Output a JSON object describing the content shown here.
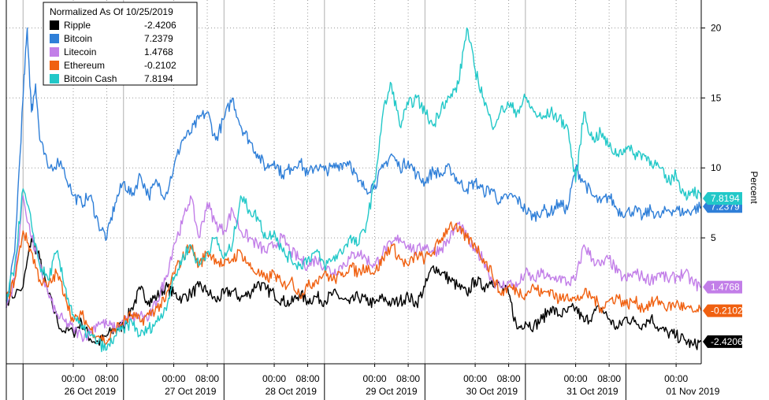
{
  "chart_data": {
    "type": "line",
    "legend": {
      "title": "Normalized As Of 10/25/2019",
      "placement": "top-left"
    },
    "ylabel": "Percent",
    "ylim": [
      -4.0,
      22.0
    ],
    "y_ticks": [
      20,
      15,
      10,
      5
    ],
    "x_range_hours": [
      -16,
      150
    ],
    "x_time_labels": [
      {
        "hour": 0,
        "label": "00:00"
      },
      {
        "hour": 8,
        "label": "08:00"
      },
      {
        "hour": 24,
        "label": "00:00"
      },
      {
        "hour": 32,
        "label": "08:00"
      },
      {
        "hour": 48,
        "label": "00:00"
      },
      {
        "hour": 56,
        "label": "08:00"
      },
      {
        "hour": 72,
        "label": "00:00"
      },
      {
        "hour": 80,
        "label": "08:00"
      },
      {
        "hour": 96,
        "label": "00:00"
      },
      {
        "hour": 104,
        "label": "08:00"
      },
      {
        "hour": 120,
        "label": "00:00"
      },
      {
        "hour": 128,
        "label": "08:00"
      },
      {
        "hour": 144,
        "label": "00:00"
      },
      {
        "hour": 152,
        "label": "08:00"
      }
    ],
    "x_date_labels": [
      {
        "hour": 0,
        "label": "26 Oct 2019"
      },
      {
        "hour": 24,
        "label": "27 Oct 2019"
      },
      {
        "hour": 48,
        "label": "28 Oct 2019"
      },
      {
        "hour": 72,
        "label": "29 Oct 2019"
      },
      {
        "hour": 96,
        "label": "30 Oct 2019"
      },
      {
        "hour": 120,
        "label": "31 Oct 2019"
      },
      {
        "hour": 144,
        "label": "01 Nov 2019"
      }
    ],
    "grid": true,
    "series": [
      {
        "name": "Ripple",
        "last_value": "-2.4206",
        "last_label": "-2.4206",
        "color": "#000000",
        "x": [
          -16,
          -12,
          -10,
          -8,
          -6,
          -3,
          0,
          2,
          4,
          6,
          8,
          10,
          12,
          14,
          16,
          18,
          20,
          22,
          24,
          26,
          28,
          30,
          32,
          34,
          36,
          38,
          40,
          42,
          44,
          46,
          48,
          50,
          52,
          54,
          56,
          58,
          60,
          62,
          64,
          66,
          68,
          70,
          72,
          74,
          76,
          78,
          80,
          82,
          84,
          86,
          88,
          90,
          92,
          94,
          96,
          98,
          100,
          102,
          104,
          106,
          108,
          110,
          112,
          114,
          116,
          118,
          120,
          122,
          124,
          126,
          128,
          130,
          132,
          134,
          136,
          138,
          140,
          142,
          144,
          146,
          148,
          150
        ],
        "y": [
          0.5,
          1.5,
          5.0,
          3.5,
          1.0,
          -1.5,
          -1.8,
          -1.0,
          -2.2,
          -2.5,
          -2.0,
          -1.5,
          -1.3,
          0.0,
          1.3,
          0.5,
          0.8,
          1.5,
          1.0,
          0.7,
          1.0,
          1.5,
          1.2,
          0.5,
          1.0,
          1.2,
          0.7,
          1.0,
          1.8,
          1.3,
          1.0,
          0.5,
          0.3,
          1.0,
          0.5,
          0.8,
          0.5,
          1.0,
          0.7,
          0.3,
          0.8,
          0.5,
          0.3,
          0.7,
          0.3,
          0.5,
          0.8,
          0.3,
          1.5,
          3.0,
          2.5,
          2.0,
          1.5,
          1.0,
          2.0,
          1.5,
          2.0,
          1.5,
          1.0,
          -1.5,
          -1.0,
          -1.3,
          -0.8,
          0.0,
          -0.5,
          -0.3,
          0.0,
          -1.0,
          -0.5,
          0.0,
          -0.8,
          -1.5,
          -0.7,
          -1.0,
          -1.2,
          -0.7,
          -1.5,
          -1.8,
          -2.0,
          -2.3,
          -2.7,
          -2.42
        ]
      },
      {
        "name": "Bitcoin",
        "last_value": "7.2379",
        "last_label": "7.2379",
        "color": "#2f7fd8",
        "x": [
          -16,
          -14,
          -12,
          -11,
          -10,
          -9,
          -8,
          -6,
          -3,
          0,
          2,
          4,
          6,
          8,
          10,
          12,
          14,
          16,
          18,
          20,
          22,
          24,
          26,
          28,
          30,
          32,
          34,
          36,
          38,
          40,
          42,
          44,
          46,
          48,
          50,
          52,
          54,
          56,
          58,
          60,
          62,
          64,
          66,
          68,
          70,
          72,
          74,
          76,
          78,
          80,
          82,
          84,
          86,
          88,
          90,
          92,
          94,
          96,
          98,
          100,
          102,
          104,
          106,
          108,
          110,
          112,
          114,
          116,
          118,
          120,
          122,
          124,
          126,
          128,
          130,
          132,
          134,
          136,
          138,
          140,
          142,
          144,
          146,
          148,
          150
        ],
        "y": [
          0.0,
          4.0,
          15.0,
          20.0,
          14.0,
          16.0,
          12.0,
          10.0,
          10.5,
          8.0,
          7.5,
          8.0,
          6.0,
          5.0,
          7.5,
          9.0,
          8.0,
          9.5,
          8.0,
          9.0,
          8.0,
          10.0,
          12.0,
          12.5,
          13.5,
          14.0,
          12.0,
          13.5,
          15.0,
          13.0,
          12.0,
          11.0,
          10.0,
          10.5,
          9.5,
          10.0,
          10.5,
          9.5,
          10.2,
          9.8,
          10.0,
          10.3,
          10.5,
          9.0,
          8.5,
          8.8,
          10.0,
          11.0,
          10.0,
          10.5,
          9.5,
          9.0,
          9.8,
          9.5,
          10.0,
          9.0,
          8.5,
          9.0,
          8.3,
          8.5,
          7.5,
          8.0,
          7.8,
          7.0,
          6.5,
          7.0,
          6.8,
          7.5,
          7.0,
          10.0,
          9.0,
          8.0,
          7.5,
          8.0,
          7.0,
          6.8,
          7.0,
          6.5,
          7.0,
          6.5,
          7.0,
          7.0,
          6.8,
          7.0,
          7.24
        ]
      },
      {
        "name": "Litecoin",
        "last_value": "1.4768",
        "last_label": "1.4768",
        "color": "#c27ee8",
        "x": [
          -16,
          -14,
          -12,
          -10,
          -8,
          -6,
          -4,
          -2,
          0,
          2,
          4,
          6,
          8,
          10,
          12,
          14,
          16,
          18,
          20,
          22,
          24,
          26,
          28,
          30,
          32,
          34,
          36,
          38,
          40,
          42,
          44,
          46,
          48,
          50,
          52,
          54,
          56,
          58,
          60,
          62,
          64,
          66,
          68,
          70,
          72,
          74,
          76,
          78,
          80,
          82,
          84,
          86,
          88,
          90,
          92,
          94,
          96,
          98,
          100,
          102,
          104,
          106,
          108,
          110,
          112,
          114,
          116,
          118,
          120,
          122,
          124,
          126,
          128,
          130,
          132,
          134,
          136,
          138,
          140,
          142,
          144,
          146,
          148,
          150
        ],
        "y": [
          0.0,
          2.0,
          8.0,
          5.0,
          3.0,
          1.0,
          -0.5,
          -1.0,
          -1.5,
          -2.0,
          -1.8,
          -1.0,
          -1.2,
          -1.5,
          -1.0,
          -0.8,
          -0.5,
          -0.8,
          0.5,
          2.0,
          4.5,
          6.0,
          8.0,
          5.0,
          7.5,
          6.0,
          5.5,
          7.0,
          5.5,
          5.0,
          4.5,
          4.0,
          4.5,
          5.0,
          4.0,
          3.5,
          3.0,
          3.5,
          3.0,
          2.5,
          3.0,
          3.5,
          4.0,
          3.5,
          3.0,
          4.0,
          4.5,
          5.0,
          4.5,
          4.0,
          4.5,
          4.0,
          4.3,
          5.0,
          6.0,
          5.0,
          4.0,
          3.5,
          2.0,
          1.5,
          1.8,
          1.5,
          2.5,
          2.0,
          2.5,
          2.0,
          2.2,
          1.8,
          2.0,
          4.5,
          3.5,
          3.0,
          3.5,
          2.5,
          2.0,
          2.5,
          2.2,
          2.0,
          2.5,
          2.0,
          2.2,
          2.5,
          1.8,
          1.48
        ]
      },
      {
        "name": "Ethereum",
        "last_value": "-0.2102",
        "last_label": "-0.2102",
        "color": "#f06010",
        "x": [
          -16,
          -14,
          -12,
          -10,
          -8,
          -6,
          -4,
          -2,
          0,
          2,
          4,
          6,
          8,
          10,
          12,
          14,
          16,
          18,
          20,
          22,
          24,
          26,
          28,
          30,
          32,
          34,
          36,
          38,
          40,
          42,
          44,
          46,
          48,
          50,
          52,
          54,
          56,
          58,
          60,
          62,
          64,
          66,
          68,
          70,
          72,
          74,
          76,
          78,
          80,
          82,
          84,
          86,
          88,
          90,
          92,
          94,
          96,
          98,
          100,
          102,
          104,
          106,
          108,
          110,
          112,
          114,
          116,
          118,
          120,
          122,
          124,
          126,
          128,
          130,
          132,
          134,
          136,
          138,
          140,
          142,
          144,
          146,
          148,
          150
        ],
        "y": [
          0.5,
          2.0,
          5.5,
          4.0,
          2.0,
          1.5,
          2.5,
          1.0,
          -1.0,
          -0.5,
          -1.5,
          -2.0,
          -2.5,
          -1.5,
          -1.0,
          -0.5,
          -1.0,
          -0.5,
          0.0,
          0.5,
          2.5,
          3.5,
          4.5,
          3.0,
          4.0,
          3.5,
          3.0,
          3.5,
          4.0,
          3.0,
          2.5,
          2.0,
          2.5,
          1.5,
          2.0,
          1.0,
          1.5,
          2.0,
          2.5,
          2.0,
          2.3,
          3.0,
          2.5,
          3.0,
          2.5,
          3.5,
          4.5,
          3.5,
          3.0,
          3.8,
          3.5,
          4.0,
          5.0,
          6.0,
          5.5,
          5.0,
          4.5,
          3.5,
          2.5,
          1.0,
          1.5,
          1.2,
          1.0,
          1.5,
          1.0,
          1.3,
          0.5,
          1.0,
          0.5,
          1.0,
          0.8,
          0.0,
          0.5,
          0.8,
          0.2,
          0.5,
          0.0,
          0.3,
          0.5,
          0.0,
          0.3,
          0.0,
          -0.3,
          -0.21
        ]
      },
      {
        "name": "Bitcoin Cash",
        "last_value": "7.8194",
        "last_label": "7.8194",
        "color": "#22c8c8",
        "x": [
          -16,
          -14,
          -12,
          -10,
          -8,
          -6,
          -4,
          -2,
          0,
          2,
          4,
          6,
          8,
          10,
          12,
          14,
          16,
          18,
          20,
          22,
          24,
          26,
          28,
          30,
          32,
          34,
          36,
          38,
          40,
          42,
          44,
          46,
          48,
          50,
          52,
          54,
          56,
          58,
          60,
          62,
          64,
          66,
          68,
          70,
          72,
          74,
          76,
          78,
          80,
          82,
          84,
          86,
          88,
          90,
          92,
          94,
          96,
          98,
          100,
          102,
          104,
          106,
          108,
          110,
          112,
          114,
          116,
          118,
          120,
          122,
          124,
          126,
          128,
          130,
          132,
          134,
          136,
          138,
          140,
          142,
          144,
          146,
          148,
          150
        ],
        "y": [
          0.5,
          3.0,
          8.5,
          6.0,
          3.0,
          2.0,
          4.0,
          1.5,
          -0.5,
          -1.5,
          -2.0,
          -2.5,
          -3.0,
          -2.0,
          -1.5,
          -1.0,
          -2.0,
          -1.5,
          -1.0,
          0.0,
          2.0,
          3.5,
          4.5,
          3.0,
          4.0,
          5.0,
          3.5,
          4.5,
          8.0,
          7.0,
          6.5,
          5.0,
          5.5,
          4.0,
          3.5,
          3.0,
          3.5,
          4.0,
          3.0,
          3.5,
          4.0,
          5.0,
          4.5,
          6.0,
          9.0,
          14.0,
          16.0,
          13.0,
          14.5,
          15.0,
          14.0,
          13.0,
          14.5,
          15.0,
          16.0,
          20.0,
          17.0,
          15.0,
          13.0,
          14.0,
          14.5,
          14.0,
          15.0,
          14.0,
          13.5,
          14.0,
          13.5,
          13.0,
          9.0,
          14.0,
          12.0,
          12.5,
          11.5,
          11.0,
          11.5,
          11.0,
          11.0,
          10.5,
          10.0,
          9.0,
          9.5,
          8.0,
          8.5,
          7.82
        ]
      }
    ]
  }
}
